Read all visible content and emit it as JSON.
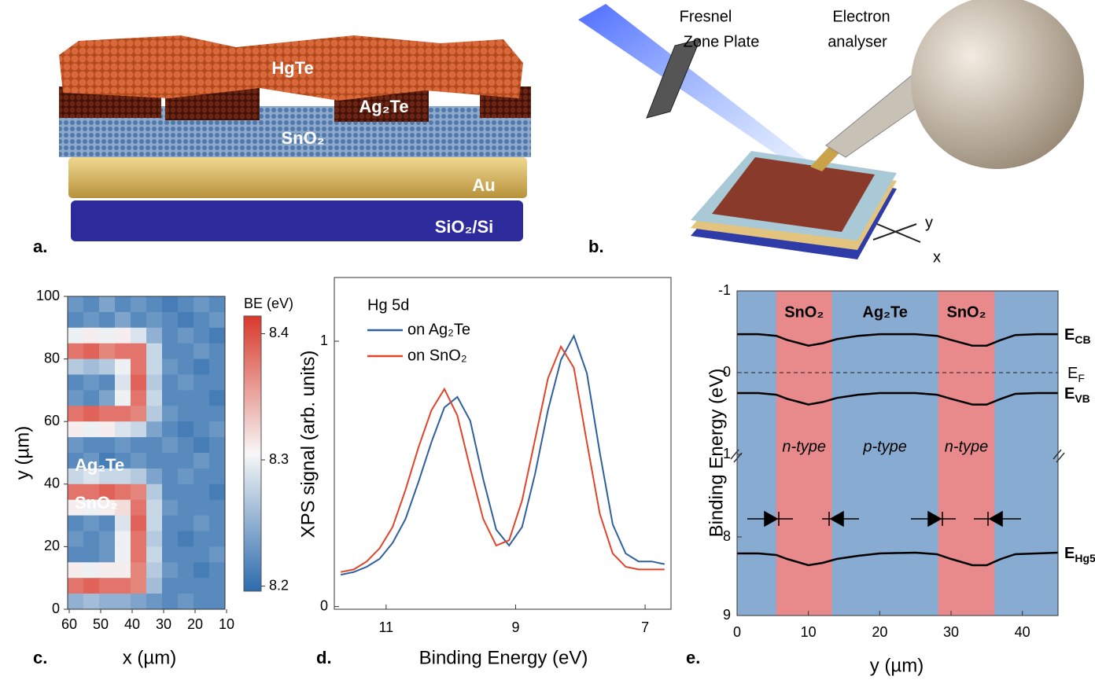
{
  "panel_a": {
    "label": "a.",
    "layers": [
      "HgTe",
      "Ag₂Te",
      "SnO₂",
      "Au",
      "SiO₂/Si"
    ]
  },
  "panel_b": {
    "label": "b.",
    "fresnel": [
      "Fresnel",
      "Zone Plate"
    ],
    "analyser": [
      "Electron",
      "analyser"
    ],
    "axes": [
      "y",
      "x"
    ]
  },
  "chart_data": [
    {
      "type": "heatmap",
      "panel_label": "c.",
      "xlabel": "x (µm)",
      "ylabel": "y (µm)",
      "xlim": [
        60.5,
        10.5
      ],
      "xticks": [
        60,
        50,
        40,
        30,
        20,
        10
      ],
      "ylim": [
        0,
        100
      ],
      "yticks": [
        0,
        20,
        40,
        60,
        80,
        100
      ],
      "x": [
        58,
        53,
        48,
        43,
        38,
        33,
        28,
        23,
        18,
        13
      ],
      "y": [
        97.5,
        92.5,
        87.5,
        82.5,
        77.5,
        72.5,
        67.5,
        62.5,
        57.5,
        52.5,
        47.5,
        42.5,
        37.5,
        32.5,
        27.5,
        22.5,
        17.5,
        12.5,
        7.5,
        2.5
      ],
      "z": [
        [
          8.23,
          8.22,
          8.24,
          8.22,
          8.23,
          8.22,
          8.21,
          8.22,
          8.23,
          8.22
        ],
        [
          8.22,
          8.23,
          8.22,
          8.24,
          8.22,
          8.23,
          8.22,
          8.21,
          8.22,
          8.23
        ],
        [
          8.3,
          8.31,
          8.3,
          8.31,
          8.29,
          8.25,
          8.22,
          8.23,
          8.22,
          8.21
        ],
        [
          8.38,
          8.39,
          8.37,
          8.38,
          8.38,
          8.28,
          8.22,
          8.22,
          8.23,
          8.22
        ],
        [
          8.27,
          8.26,
          8.27,
          8.3,
          8.38,
          8.28,
          8.23,
          8.22,
          8.21,
          8.22
        ],
        [
          8.22,
          8.23,
          8.22,
          8.29,
          8.39,
          8.27,
          8.22,
          8.23,
          8.22,
          8.22
        ],
        [
          8.23,
          8.22,
          8.24,
          8.3,
          8.38,
          8.28,
          8.22,
          8.22,
          8.22,
          8.21
        ],
        [
          8.38,
          8.39,
          8.38,
          8.38,
          8.37,
          8.27,
          8.23,
          8.22,
          8.22,
          8.22
        ],
        [
          8.31,
          8.3,
          8.31,
          8.29,
          8.28,
          8.24,
          8.22,
          8.21,
          8.22,
          8.23
        ],
        [
          8.23,
          8.22,
          8.22,
          8.23,
          8.22,
          8.22,
          8.23,
          8.22,
          8.21,
          8.22
        ],
        [
          8.22,
          8.23,
          8.21,
          8.22,
          8.23,
          8.22,
          8.22,
          8.22,
          8.23,
          8.22
        ],
        [
          8.28,
          8.29,
          8.28,
          8.28,
          8.27,
          8.24,
          8.22,
          8.23,
          8.22,
          8.22
        ],
        [
          8.38,
          8.38,
          8.39,
          8.38,
          8.37,
          8.27,
          8.22,
          8.22,
          8.22,
          8.21
        ],
        [
          8.31,
          8.3,
          8.31,
          8.32,
          8.38,
          8.28,
          8.23,
          8.22,
          8.22,
          8.22
        ],
        [
          8.22,
          8.23,
          8.22,
          8.29,
          8.39,
          8.28,
          8.22,
          8.22,
          8.23,
          8.22
        ],
        [
          8.23,
          8.22,
          8.23,
          8.3,
          8.38,
          8.27,
          8.22,
          8.21,
          8.22,
          8.22
        ],
        [
          8.22,
          8.22,
          8.23,
          8.3,
          8.38,
          8.28,
          8.22,
          8.22,
          8.22,
          8.23
        ],
        [
          8.31,
          8.3,
          8.31,
          8.31,
          8.37,
          8.27,
          8.23,
          8.22,
          8.21,
          8.22
        ],
        [
          8.38,
          8.39,
          8.38,
          8.38,
          8.37,
          8.26,
          8.22,
          8.22,
          8.22,
          8.22
        ],
        [
          8.25,
          8.26,
          8.25,
          8.25,
          8.24,
          8.23,
          8.22,
          8.23,
          8.22,
          8.22
        ]
      ],
      "colorbar": {
        "label": "BE (eV)",
        "lim": [
          8.196,
          8.414
        ],
        "ticks": [
          8.2,
          8.3,
          8.4
        ],
        "colors": [
          "#2c6bad",
          "#f7f7f7",
          "#d8392b"
        ]
      },
      "annotations": [
        "Ag₂Te",
        "SnO₂"
      ]
    },
    {
      "type": "line",
      "panel_label": "d.",
      "xlabel": "Binding Energy (eV)",
      "ylabel": "XPS signal (arb. units)",
      "xlim": [
        11.8,
        6.6
      ],
      "xticks": [
        11,
        9,
        7
      ],
      "ylim": [
        -0.01,
        1.24
      ],
      "yticks": [
        0,
        1
      ],
      "annotation": "Hg 5d",
      "x": [
        11.7,
        11.5,
        11.3,
        11.1,
        10.9,
        10.7,
        10.5,
        10.3,
        10.1,
        9.9,
        9.7,
        9.5,
        9.3,
        9.1,
        8.9,
        8.7,
        8.5,
        8.3,
        8.1,
        7.9,
        7.7,
        7.5,
        7.3,
        7.1,
        6.9,
        6.7
      ],
      "series": [
        {
          "name": "on Ag₂Te",
          "color": "#2e5f9e",
          "values": [
            0.12,
            0.13,
            0.15,
            0.18,
            0.24,
            0.33,
            0.47,
            0.62,
            0.75,
            0.79,
            0.7,
            0.48,
            0.29,
            0.23,
            0.3,
            0.5,
            0.74,
            0.93,
            1.02,
            0.88,
            0.58,
            0.31,
            0.2,
            0.17,
            0.17,
            0.16
          ]
        },
        {
          "name": "on SnO₂",
          "color": "#e0452a",
          "values": [
            0.13,
            0.14,
            0.17,
            0.22,
            0.3,
            0.44,
            0.6,
            0.74,
            0.82,
            0.72,
            0.52,
            0.33,
            0.23,
            0.25,
            0.4,
            0.63,
            0.86,
            0.98,
            0.9,
            0.62,
            0.35,
            0.2,
            0.15,
            0.14,
            0.14,
            0.14
          ]
        }
      ]
    },
    {
      "type": "band-diagram",
      "panel_label": "e.",
      "xlabel": "y (µm)",
      "ylabel": "Binding Energy (eV)",
      "xlim": [
        0,
        45
      ],
      "xticks": [
        0,
        10,
        20,
        30,
        40
      ],
      "ylim": [
        -1,
        1
      ],
      "yticks": [
        -1,
        0,
        1
      ],
      "ylim_lower": [
        6.95,
        9
      ],
      "yticks_lower": [
        8,
        9
      ],
      "y_inverted": true,
      "background": "#88abd1",
      "regions": [
        {
          "x": [
            5.5,
            13.3
          ],
          "color": "#e88a8c",
          "label": "SnO₂",
          "doping": "n-type"
        },
        {
          "x": [
            13.3,
            28.2
          ],
          "color": "#88abd1",
          "label": "Ag₂Te",
          "doping": "p-type"
        },
        {
          "x": [
            28.2,
            36.1
          ],
          "color": "#e88a8c",
          "label": "SnO₂",
          "doping": "n-type"
        }
      ],
      "fermi": {
        "value": 0,
        "name": "E",
        "subscript": "F"
      },
      "x": [
        0,
        3,
        5.5,
        7,
        10,
        12,
        14,
        17,
        20,
        25,
        28,
        30,
        33,
        35,
        37,
        39,
        42,
        45
      ],
      "series": [
        {
          "name": "E",
          "subscript": "CB",
          "part": "upper",
          "values": [
            -0.47,
            -0.47,
            -0.45,
            -0.4,
            -0.33,
            -0.36,
            -0.41,
            -0.45,
            -0.47,
            -0.47,
            -0.45,
            -0.4,
            -0.33,
            -0.33,
            -0.4,
            -0.46,
            -0.47,
            -0.47
          ]
        },
        {
          "name": "E",
          "subscript": "VB",
          "part": "upper",
          "values": [
            0.25,
            0.25,
            0.27,
            0.32,
            0.39,
            0.36,
            0.31,
            0.27,
            0.25,
            0.25,
            0.27,
            0.32,
            0.39,
            0.39,
            0.32,
            0.26,
            0.25,
            0.25
          ]
        },
        {
          "name": "E",
          "subscript": "Hg5d",
          "part": "lower",
          "values": [
            8.21,
            8.21,
            8.23,
            8.28,
            8.36,
            8.33,
            8.28,
            8.24,
            8.21,
            8.2,
            8.22,
            8.28,
            8.36,
            8.36,
            8.28,
            8.22,
            8.21,
            8.2
          ]
        }
      ]
    }
  ]
}
